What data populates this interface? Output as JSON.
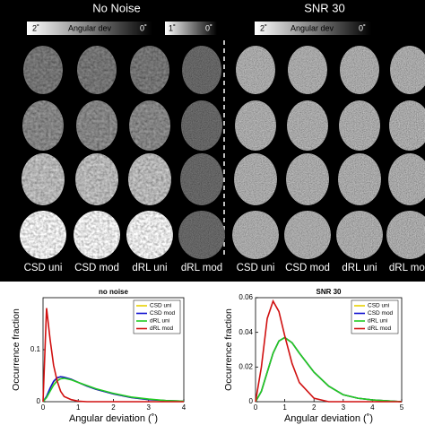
{
  "panel": {
    "left_title": "No Noise",
    "right_title": "SNR 30",
    "colorbar_left": [
      "2˚",
      "Angular dev",
      "0˚"
    ],
    "colorbar_small": [
      "1˚",
      "0˚"
    ],
    "colorbar_right": [
      "2˚",
      "Angular dev",
      "0˚"
    ],
    "columns_left": [
      "CSD uni",
      "CSD mod",
      "dRL uni",
      "dRL mod"
    ],
    "columns_right": [
      "CSD uni",
      "CSD mod",
      "dRL uni",
      "dRL mod"
    ]
  },
  "chart_data": [
    {
      "type": "line",
      "title": "no noise",
      "y_label": "Occurrence fraction",
      "x_label": "Angular deviation (˚)",
      "x": [
        0,
        0.1,
        0.2,
        0.3,
        0.4,
        0.5,
        0.6,
        0.8,
        1,
        1.25,
        1.5,
        2,
        2.5,
        3,
        3.5,
        4
      ],
      "xlim": [
        0,
        4
      ],
      "xticks": [
        0,
        1,
        2,
        3,
        4
      ],
      "ylim": [
        0,
        0.2
      ],
      "yticks": [
        0,
        0.1
      ],
      "legend": "upper right",
      "series": [
        {
          "name": "CSD uni",
          "color": "#e8d000",
          "values": [
            0,
            0.01,
            0.025,
            0.038,
            0.045,
            0.048,
            0.047,
            0.043,
            0.037,
            0.03,
            0.024,
            0.015,
            0.008,
            0.004,
            0.002,
            0.001
          ]
        },
        {
          "name": "CSD mod",
          "color": "#1010d0",
          "values": [
            0,
            0.01,
            0.026,
            0.039,
            0.046,
            0.048,
            0.047,
            0.043,
            0.037,
            0.03,
            0.024,
            0.015,
            0.008,
            0.004,
            0.002,
            0.001
          ]
        },
        {
          "name": "dRL uni",
          "color": "#22cc22",
          "values": [
            0,
            0.008,
            0.02,
            0.032,
            0.04,
            0.044,
            0.045,
            0.042,
            0.037,
            0.031,
            0.025,
            0.016,
            0.009,
            0.005,
            0.002,
            0.001
          ]
        },
        {
          "name": "dRL mod",
          "color": "#d01010",
          "values": [
            0,
            0.18,
            0.12,
            0.07,
            0.04,
            0.02,
            0.01,
            0.004,
            0.001,
            0,
            0,
            0,
            0,
            0,
            0,
            0
          ]
        }
      ]
    },
    {
      "type": "line",
      "title": "SNR 30",
      "y_label": "Occurrence fraction",
      "x_label": "Angular deviation (˚)",
      "x": [
        0,
        0.2,
        0.4,
        0.6,
        0.8,
        1,
        1.25,
        1.5,
        2,
        2.5,
        3,
        3.5,
        4,
        5
      ],
      "xlim": [
        0,
        5
      ],
      "xticks": [
        0,
        1,
        2,
        3,
        4,
        5
      ],
      "ylim": [
        0,
        0.06
      ],
      "yticks": [
        0,
        0.02,
        0.04,
        0.06
      ],
      "legend": "upper right",
      "series": [
        {
          "name": "CSD uni",
          "color": "#e8d000",
          "values": [
            0,
            0.006,
            0.017,
            0.028,
            0.035,
            0.037,
            0.034,
            0.028,
            0.017,
            0.009,
            0.004,
            0.002,
            0.001,
            0
          ]
        },
        {
          "name": "CSD mod",
          "color": "#1010d0",
          "values": [
            0,
            0.006,
            0.017,
            0.028,
            0.035,
            0.037,
            0.034,
            0.028,
            0.017,
            0.009,
            0.004,
            0.002,
            0.001,
            0
          ]
        },
        {
          "name": "dRL uni",
          "color": "#22cc22",
          "values": [
            0,
            0.006,
            0.017,
            0.028,
            0.035,
            0.037,
            0.034,
            0.028,
            0.017,
            0.009,
            0.004,
            0.002,
            0.001,
            0
          ]
        },
        {
          "name": "dRL mod",
          "color": "#d01010",
          "values": [
            0,
            0.02,
            0.048,
            0.058,
            0.052,
            0.038,
            0.022,
            0.011,
            0.002,
            0,
            0,
            0,
            0,
            0
          ]
        }
      ]
    }
  ]
}
